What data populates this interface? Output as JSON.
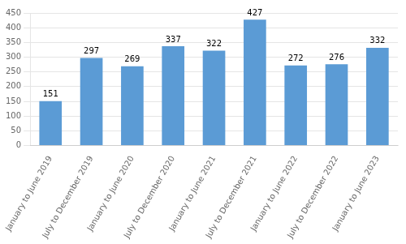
{
  "chart_data": {
    "type": "bar",
    "categories": [
      "January to June 2019",
      "July to December 2019",
      "January to June 2020",
      "July to December 2020",
      "January to June 2021",
      "July to December 2021",
      "January to June 2022",
      "July to December 2022",
      "January to June 2023"
    ],
    "values": [
      151,
      297,
      269,
      337,
      322,
      427,
      272,
      276,
      332
    ],
    "color": "#5B9BD5",
    "ylim": [
      0,
      450
    ],
    "yticks": [
      0,
      50,
      100,
      150,
      200,
      250,
      300,
      350,
      400,
      450
    ],
    "grid": true,
    "data_labels": true
  }
}
